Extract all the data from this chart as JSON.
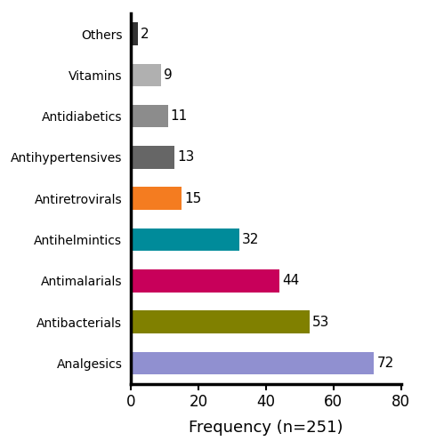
{
  "categories": [
    "Analgesics",
    "Antibacterials",
    "Antimalarials",
    "Antihelmintics",
    "Antiretrovirals",
    "Antihypertensives",
    "Antidiabetics",
    "Vitamins",
    "Others"
  ],
  "values": [
    72,
    53,
    44,
    32,
    15,
    13,
    11,
    9,
    2
  ],
  "colors": [
    "#9090d0",
    "#808000",
    "#c8005a",
    "#008b9a",
    "#f47c20",
    "#666666",
    "#8c8c8c",
    "#b0b0b0",
    "#333333"
  ],
  "xlabel": "Frequency (n=251)",
  "xlim": [
    0,
    80
  ],
  "xticks": [
    0,
    20,
    40,
    60,
    80
  ],
  "bar_height": 0.55,
  "label_fontsize": 12,
  "tick_fontsize": 12,
  "xlabel_fontsize": 13,
  "value_fontsize": 11
}
